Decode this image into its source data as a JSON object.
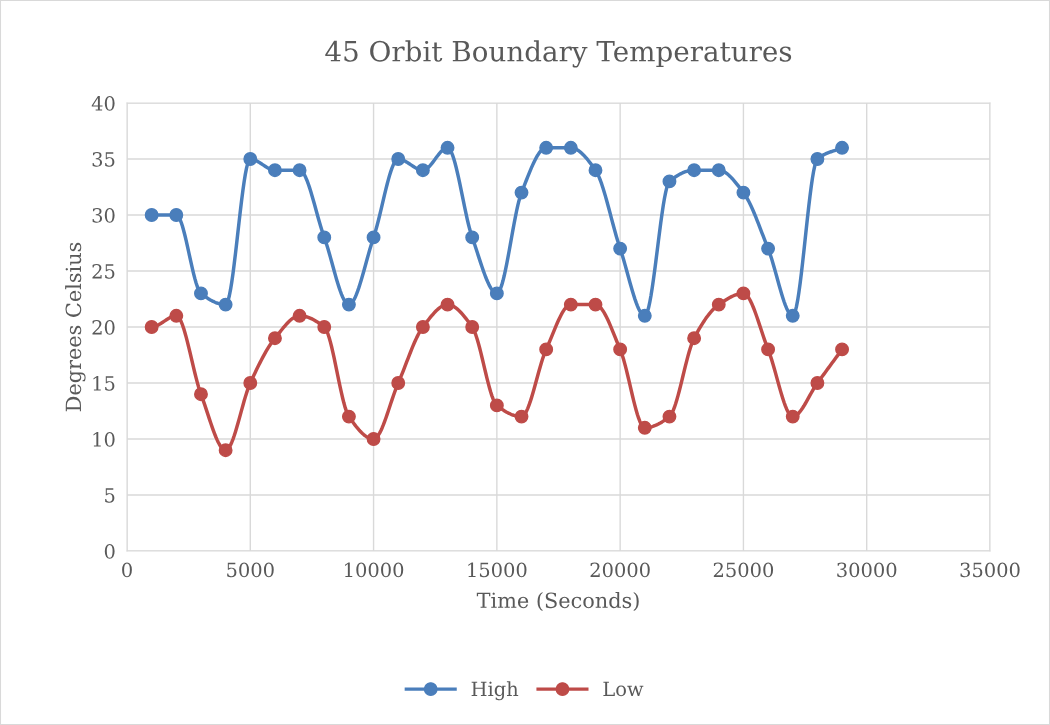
{
  "chart_data": {
    "type": "line",
    "title": "45 Orbit Boundary Temperatures",
    "xlabel": "Time (Seconds)",
    "ylabel": "Degrees Celsius",
    "x": [
      1000,
      2000,
      3000,
      4000,
      5000,
      6000,
      7000,
      8000,
      9000,
      10000,
      11000,
      12000,
      13000,
      14000,
      15000,
      16000,
      17000,
      18000,
      19000,
      20000,
      21000,
      22000,
      23000,
      24000,
      25000,
      26000,
      27000,
      28000,
      29000
    ],
    "series": [
      {
        "name": "High",
        "color": "#4a7ebb",
        "values": [
          30,
          30,
          23,
          22,
          35,
          34,
          34,
          28,
          22,
          28,
          35,
          34,
          36,
          28,
          23,
          32,
          36,
          36,
          34,
          27,
          21,
          33,
          34,
          34,
          32,
          27,
          21,
          35,
          36
        ]
      },
      {
        "name": "Low",
        "color": "#be4b48",
        "values": [
          20,
          21,
          14,
          9,
          15,
          19,
          21,
          20,
          12,
          10,
          15,
          20,
          22,
          20,
          13,
          12,
          18,
          22,
          22,
          18,
          11,
          12,
          19,
          22,
          23,
          18,
          12,
          15,
          18
        ]
      }
    ],
    "xlim": [
      0,
      35000
    ],
    "xticks": [
      0,
      5000,
      10000,
      15000,
      20000,
      25000,
      30000,
      35000
    ],
    "ylim": [
      0,
      40
    ],
    "yticks": [
      0,
      5,
      10,
      15,
      20,
      25,
      30,
      35,
      40
    ],
    "grid": true,
    "legend": "bottom",
    "marker": "circle",
    "line_style": "solid"
  }
}
